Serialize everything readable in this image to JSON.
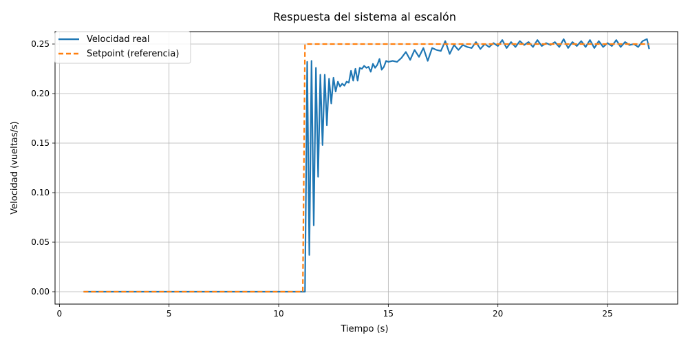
{
  "chart_data": {
    "type": "line",
    "title": "Respuesta del sistema al escalón",
    "xlabel": "Tiempo (s)",
    "ylabel": "Velocidad (vueltas/s)",
    "xlim": [
      -0.2,
      28.2
    ],
    "ylim": [
      -0.0125,
      0.2625
    ],
    "x_ticks": [
      0,
      5,
      10,
      15,
      20,
      25
    ],
    "x_tick_labels": [
      "0",
      "5",
      "10",
      "15",
      "20",
      "25"
    ],
    "y_ticks": [
      0.0,
      0.05,
      0.1,
      0.15,
      0.2,
      0.25
    ],
    "y_tick_labels": [
      "0.00",
      "0.05",
      "0.10",
      "0.15",
      "0.20",
      "0.25"
    ],
    "grid": true,
    "legend_position": "top-left",
    "series": [
      {
        "name": "Velocidad real",
        "color": "#1f77b4",
        "style": "solid",
        "x": [
          1.1,
          5.0,
          10.0,
          11.2,
          11.3,
          11.4,
          11.5,
          11.6,
          11.7,
          11.8,
          11.9,
          12.0,
          12.1,
          12.2,
          12.3,
          12.4,
          12.5,
          12.6,
          12.7,
          12.8,
          12.9,
          13.0,
          13.1,
          13.2,
          13.3,
          13.4,
          13.5,
          13.6,
          13.7,
          13.8,
          13.9,
          14.0,
          14.1,
          14.2,
          14.3,
          14.4,
          14.5,
          14.6,
          14.7,
          14.8,
          14.9,
          15.0,
          15.2,
          15.4,
          15.6,
          15.8,
          16.0,
          16.2,
          16.4,
          16.6,
          16.8,
          17.0,
          17.2,
          17.4,
          17.6,
          17.8,
          18.0,
          18.2,
          18.4,
          18.6,
          18.8,
          19.0,
          19.2,
          19.4,
          19.6,
          19.8,
          20.0,
          20.2,
          20.4,
          20.6,
          20.8,
          21.0,
          21.2,
          21.4,
          21.6,
          21.8,
          22.0,
          22.2,
          22.4,
          22.6,
          22.8,
          23.0,
          23.2,
          23.4,
          23.6,
          23.8,
          24.0,
          24.2,
          24.4,
          24.6,
          24.8,
          25.0,
          25.2,
          25.4,
          25.6,
          25.8,
          26.0,
          26.2,
          26.4,
          26.6,
          26.8,
          26.9
        ],
        "y": [
          0.0,
          0.0,
          0.0,
          0.0,
          0.232,
          0.037,
          0.233,
          0.067,
          0.226,
          0.116,
          0.219,
          0.148,
          0.219,
          0.168,
          0.215,
          0.19,
          0.216,
          0.202,
          0.212,
          0.207,
          0.21,
          0.208,
          0.212,
          0.211,
          0.223,
          0.213,
          0.225,
          0.213,
          0.226,
          0.225,
          0.228,
          0.226,
          0.227,
          0.222,
          0.23,
          0.226,
          0.229,
          0.235,
          0.224,
          0.227,
          0.233,
          0.232,
          0.233,
          0.232,
          0.236,
          0.242,
          0.234,
          0.244,
          0.237,
          0.246,
          0.233,
          0.246,
          0.244,
          0.243,
          0.253,
          0.24,
          0.249,
          0.244,
          0.249,
          0.247,
          0.246,
          0.252,
          0.245,
          0.25,
          0.247,
          0.251,
          0.248,
          0.254,
          0.246,
          0.252,
          0.247,
          0.253,
          0.249,
          0.252,
          0.247,
          0.254,
          0.248,
          0.251,
          0.249,
          0.252,
          0.247,
          0.255,
          0.246,
          0.252,
          0.248,
          0.253,
          0.247,
          0.254,
          0.246,
          0.253,
          0.247,
          0.251,
          0.248,
          0.254,
          0.247,
          0.252,
          0.249,
          0.25,
          0.247,
          0.253,
          0.255,
          0.245
        ]
      },
      {
        "name": "Setpoint (referencia)",
        "color": "#ff7f0e",
        "style": "dashed",
        "x": [
          1.1,
          11.1,
          11.2,
          26.9
        ],
        "y": [
          0.0,
          0.0,
          0.25,
          0.25
        ]
      }
    ]
  }
}
